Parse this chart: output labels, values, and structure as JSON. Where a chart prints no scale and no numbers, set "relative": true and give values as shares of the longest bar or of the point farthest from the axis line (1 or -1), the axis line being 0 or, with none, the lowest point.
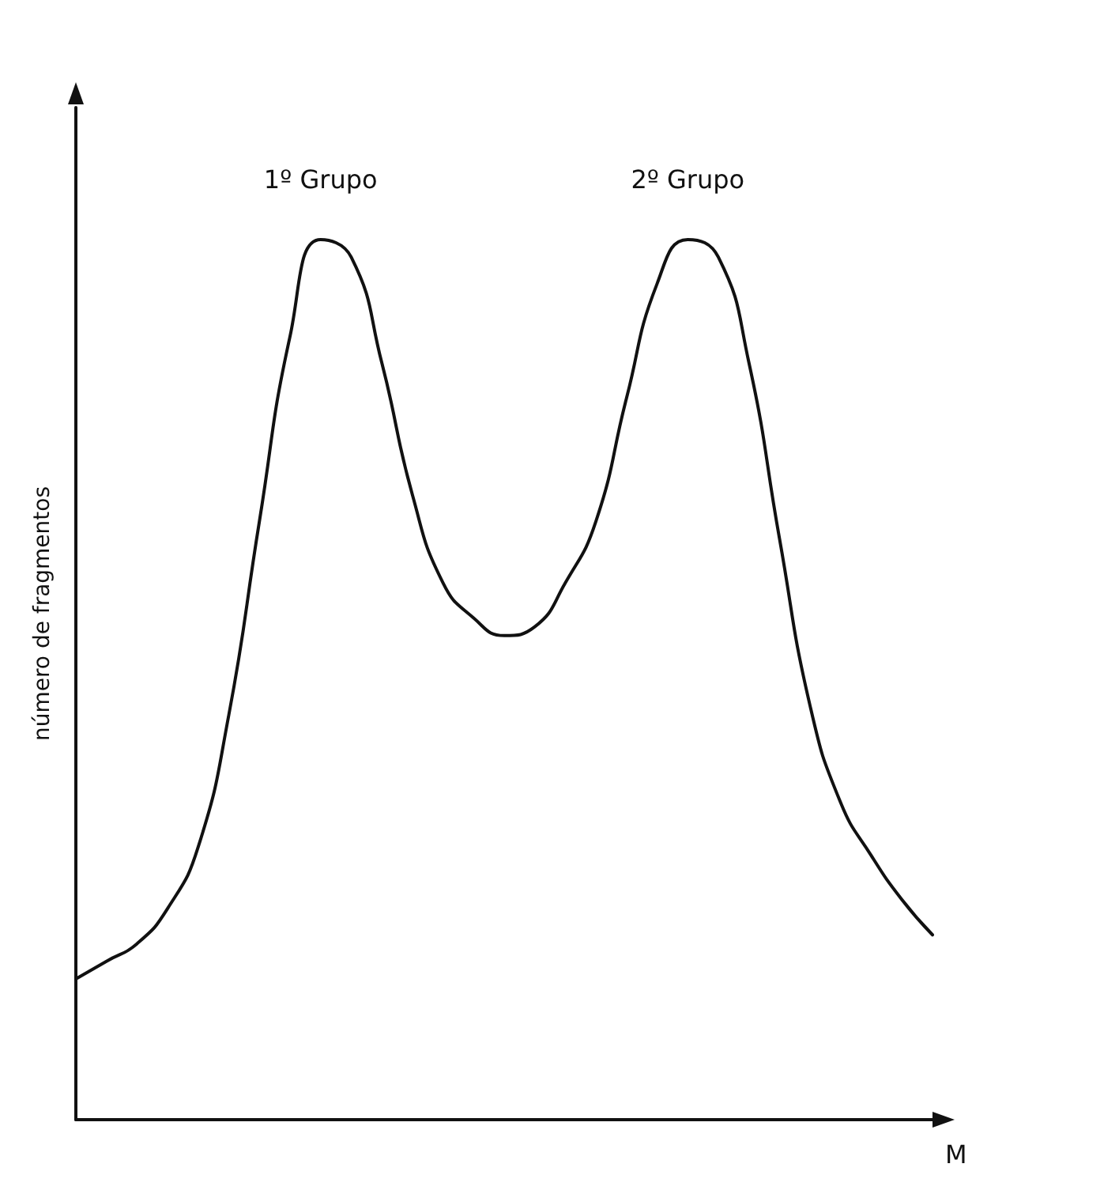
{
  "chart_data": {
    "type": "line",
    "relative": true,
    "xlabel": "M",
    "ylabel": "número de fragmentos",
    "annotations": [
      "1º Grupo",
      "2º Grupo"
    ],
    "categories": [
      null,
      null,
      null,
      null,
      null,
      null,
      null,
      null,
      null,
      null,
      null,
      null,
      null,
      null,
      null,
      null,
      null,
      null,
      null,
      null,
      null,
      null,
      null,
      null,
      null,
      null,
      null,
      null,
      null
    ],
    "series": [
      {
        "color": "#111111",
        "values": [
          0.16,
          0.18,
          0.2,
          0.24,
          0.31,
          0.46,
          0.68,
          0.89,
          1,
          0.98,
          0.86,
          0.71,
          0.61,
          0.57,
          0.55,
          0.56,
          0.61,
          0.68,
          0.82,
          0.95,
          1,
          0.98,
          0.86,
          0.66,
          0.47,
          0.36,
          0.3,
          0.25,
          0.21
        ]
      }
    ],
    "grid": false,
    "marker": "none",
    "line_style": "solid"
  }
}
